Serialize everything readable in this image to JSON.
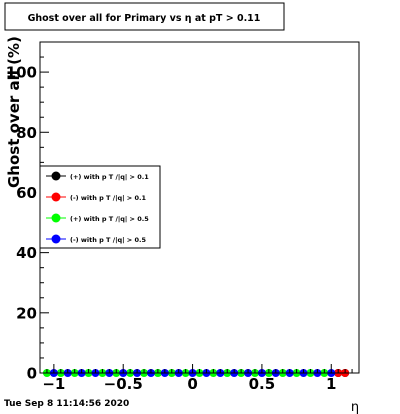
{
  "chart_data": {
    "type": "scatter",
    "title": "Ghost over all for Primary vs   η at pT > 0.11",
    "xlabel": "η",
    "ylabel": "Ghost over all (%)",
    "xlim": [
      -1.1,
      1.2
    ],
    "ylim": [
      0,
      110
    ],
    "xticks": [
      -1,
      -0.5,
      0,
      0.5,
      1
    ],
    "xtick_labels": [
      "−1",
      "−0.5",
      "0",
      "0.5",
      "1"
    ],
    "yticks": [
      0,
      20,
      40,
      60,
      80,
      100
    ],
    "ytick_labels": [
      "0",
      "20",
      "40",
      "60",
      "80",
      "100"
    ],
    "grid": false,
    "legend_position": "left-middle",
    "series": [
      {
        "name": "(+) with p T /|q| > 0.1",
        "color": "#000000",
        "x": [
          1.05,
          1.1
        ],
        "y": [
          0,
          0
        ]
      },
      {
        "name": "(-) with p T /|q| > 0.1",
        "color": "#ff0000",
        "x": [
          1.05,
          1.1
        ],
        "y": [
          0,
          0
        ]
      },
      {
        "name": "(+) with p T /|q| > 0.5",
        "color": "#00ff00",
        "x": [
          -1.05,
          -0.95,
          -0.85,
          -0.75,
          -0.65,
          -0.55,
          -0.45,
          -0.35,
          -0.25,
          -0.15,
          -0.05,
          0.05,
          0.15,
          0.25,
          0.35,
          0.45,
          0.55,
          0.65,
          0.75,
          0.85,
          0.95
        ],
        "y": [
          0,
          0,
          0,
          0,
          0,
          0,
          0,
          0,
          0,
          0,
          0,
          0,
          0,
          0,
          0,
          0,
          0,
          0,
          0,
          0,
          0
        ]
      },
      {
        "name": "(-) with p T /|q| > 0.5",
        "color": "#0000ff",
        "x": [
          -1.0,
          -0.9,
          -0.8,
          -0.7,
          -0.6,
          -0.5,
          -0.4,
          -0.3,
          -0.2,
          -0.1,
          0.0,
          0.1,
          0.2,
          0.3,
          0.4,
          0.5,
          0.6,
          0.7,
          0.8,
          0.9,
          1.0
        ],
        "y": [
          0,
          0,
          0,
          0,
          0,
          0,
          0,
          0,
          0,
          0,
          0,
          0,
          0,
          0,
          0,
          0,
          0,
          0,
          0,
          0,
          0
        ]
      }
    ]
  },
  "timestamp": "Tue Sep  8 11:14:56 2020"
}
